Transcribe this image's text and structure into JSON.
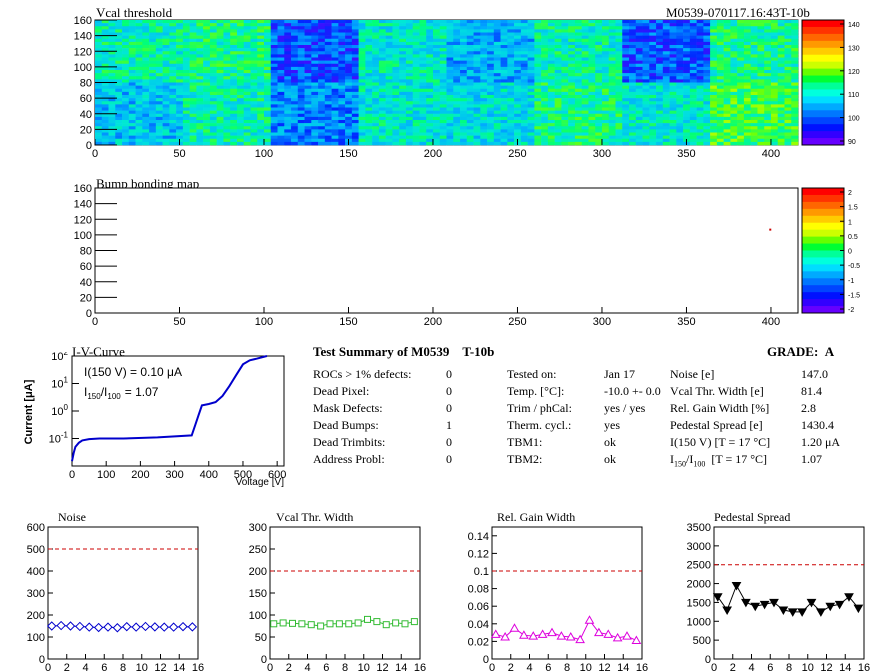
{
  "header": {
    "title": "Vcal threshold",
    "id": "M0539-070117.16:43T-10b"
  },
  "bump": {
    "title": "Bump bonding map"
  },
  "maps": {
    "x_ticks": [
      0,
      50,
      100,
      150,
      200,
      250,
      300,
      350,
      400
    ],
    "y_ticks": [
      0,
      20,
      40,
      60,
      80,
      100,
      120,
      140,
      160
    ],
    "vcal_palette_ticks": [
      "140",
      "130",
      "120",
      "110",
      "100",
      "90"
    ],
    "bump_palette_ticks": [
      "2",
      "1.5",
      "1",
      "0.5",
      "0",
      "-0.5",
      "-1",
      "-1.5",
      "-2"
    ],
    "palette_colors": [
      "#ff0000",
      "#ff3300",
      "#ff6600",
      "#ff9900",
      "#ffcc00",
      "#ffff00",
      "#ccff00",
      "#66ff00",
      "#00ff33",
      "#00ff99",
      "#00ffdd",
      "#00ddff",
      "#00aaff",
      "#0077ff",
      "#0044ff",
      "#0011ff",
      "#3300ff",
      "#6600ff"
    ]
  },
  "iv": {
    "title": "I-V-Curve",
    "label1": "I(150 V) = 0.10 μA",
    "label2_prefix": "I",
    "label2_sub1": "150",
    "label2_mid": "/I",
    "label2_sub2": "100",
    "label2_val": "=  1.07",
    "ylabel": "Current [μA]",
    "xlabel": "Voltage [V]",
    "x_ticks": [
      "0",
      "100",
      "200",
      "300",
      "400",
      "500",
      "600"
    ]
  },
  "summary": {
    "title": "Test Summary of M0539",
    "module": "T-10b",
    "grade_label": "GRADE:",
    "grade": "A",
    "col1_labels": [
      "ROCs > 1% defects:",
      "Dead Pixel:",
      "Mask Defects:",
      "Dead Bumps:",
      "Dead Trimbits:",
      "Address Probl:"
    ],
    "col1_values": [
      "0",
      "0",
      "0",
      "1",
      "0",
      "0"
    ],
    "col2_labels": [
      "Tested on:",
      "Temp. [°C]:",
      "Trim / phCal:",
      "Therm. cycl.:",
      "TBM1:",
      "TBM2:"
    ],
    "col2_values": [
      "Jan 17",
      "-10.0 +- 0.0",
      "yes / yes",
      "yes",
      "ok",
      "ok"
    ],
    "col3_labels": [
      "Noise [e]",
      "Vcal Thr. Width [e]",
      "Rel. Gain Width [%]",
      "Pedestal Spread [e]",
      "I(150 V) [T = 17 °C]"
    ],
    "col3_values": [
      "147.0",
      "81.4",
      "2.8",
      "1430.4",
      "1.20 μA",
      "1.07"
    ],
    "col3_last_I": "I",
    "col3_last_sub1": "150",
    "col3_last_mid": "/I",
    "col3_last_sub2": "100",
    "col3_last_rest": "  [T = 17 °C]"
  },
  "chart_data": [
    {
      "type": "heatmap",
      "title": "Vcal threshold",
      "x_range": [
        0,
        416
      ],
      "y_range": [
        0,
        160
      ],
      "grid": {
        "cols": 8,
        "rows": 2
      },
      "roc_mean_values": [
        [
          105,
          112,
          100,
          110,
          108,
          114,
          110,
          118
        ],
        [
          112,
          114,
          95,
          110,
          103,
          112,
          96,
          114
        ]
      ],
      "z_range": [
        85,
        140
      ],
      "note_row_order": "row0 = y 0-80, row1 = y 80-160"
    },
    {
      "type": "heatmap",
      "title": "Bump bonding map",
      "x_range": [
        0,
        416
      ],
      "y_range": [
        0,
        160
      ],
      "z_range": [
        -2,
        2
      ],
      "points": [
        {
          "x": 399,
          "y": 108,
          "z": 1.5
        }
      ]
    },
    {
      "type": "line",
      "title": "I-V-Curve",
      "xlabel": "Voltage [V]",
      "ylabel": "Current [μA]",
      "xlim": [
        0,
        620
      ],
      "ylim": [
        0.01,
        100
      ],
      "yscale": "log",
      "x": [
        0,
        5,
        10,
        20,
        30,
        50,
        80,
        150,
        250,
        350,
        360,
        370,
        380,
        400,
        420,
        440,
        460,
        480,
        500,
        520,
        540,
        570
      ],
      "y": [
        0.015,
        0.03,
        0.05,
        0.07,
        0.085,
        0.095,
        0.1,
        0.1,
        0.11,
        0.13,
        0.3,
        0.7,
        1.6,
        1.8,
        2.1,
        3.5,
        8,
        20,
        50,
        70,
        80,
        100
      ]
    },
    {
      "type": "line",
      "title": "Noise",
      "x": [
        0,
        1,
        2,
        3,
        4,
        5,
        6,
        7,
        8,
        9,
        10,
        11,
        12,
        13,
        14,
        15
      ],
      "y": [
        150,
        152,
        150,
        148,
        145,
        143,
        145,
        142,
        147,
        145,
        148,
        146,
        145,
        145,
        147,
        146
      ],
      "xlim": [
        0,
        16
      ],
      "ylim": [
        0,
        600
      ],
      "threshold": 500,
      "y_ticks": [
        "0",
        "100",
        "200",
        "300",
        "400",
        "500",
        "600"
      ],
      "color": "#0000cc"
    },
    {
      "type": "line",
      "title": "Vcal Thr. Width",
      "x": [
        0,
        1,
        2,
        3,
        4,
        5,
        6,
        7,
        8,
        9,
        10,
        11,
        12,
        13,
        14,
        15
      ],
      "y": [
        80,
        82,
        81,
        80,
        78,
        75,
        80,
        80,
        80,
        82,
        90,
        85,
        78,
        82,
        80,
        85
      ],
      "xlim": [
        0,
        16
      ],
      "ylim": [
        0,
        300
      ],
      "threshold": 200,
      "y_ticks": [
        "0",
        "50",
        "100",
        "150",
        "200",
        "250",
        "300"
      ],
      "color": "#33bb33"
    },
    {
      "type": "line",
      "title": "Rel. Gain Width",
      "x": [
        0,
        1,
        2,
        3,
        4,
        5,
        6,
        7,
        8,
        9,
        10,
        11,
        12,
        13,
        14,
        15
      ],
      "y": [
        0.028,
        0.025,
        0.035,
        0.027,
        0.026,
        0.028,
        0.03,
        0.026,
        0.025,
        0.022,
        0.044,
        0.03,
        0.028,
        0.024,
        0.026,
        0.021
      ],
      "xlim": [
        0,
        16
      ],
      "ylim": [
        0,
        0.15
      ],
      "threshold": 0.1,
      "y_ticks": [
        "0",
        "0.02",
        "0.04",
        "0.06",
        "0.08",
        "0.1",
        "0.12",
        "0.14"
      ],
      "color": "#dd00dd"
    },
    {
      "type": "line",
      "title": "Pedestal Spread",
      "x": [
        0,
        1,
        2,
        3,
        4,
        5,
        6,
        7,
        8,
        9,
        10,
        11,
        12,
        13,
        14,
        15
      ],
      "y": [
        1650,
        1300,
        1950,
        1500,
        1400,
        1450,
        1500,
        1300,
        1250,
        1250,
        1500,
        1250,
        1400,
        1450,
        1650,
        1350
      ],
      "xlim": [
        0,
        16
      ],
      "ylim": [
        0,
        3500
      ],
      "threshold": 2500,
      "y_ticks": [
        "0",
        "500",
        "1000",
        "1500",
        "2000",
        "2500",
        "3000",
        "3500"
      ],
      "color": "#000000"
    }
  ],
  "small_x_ticks": [
    "0",
    "2",
    "4",
    "6",
    "8",
    "10",
    "12",
    "14",
    "16"
  ]
}
